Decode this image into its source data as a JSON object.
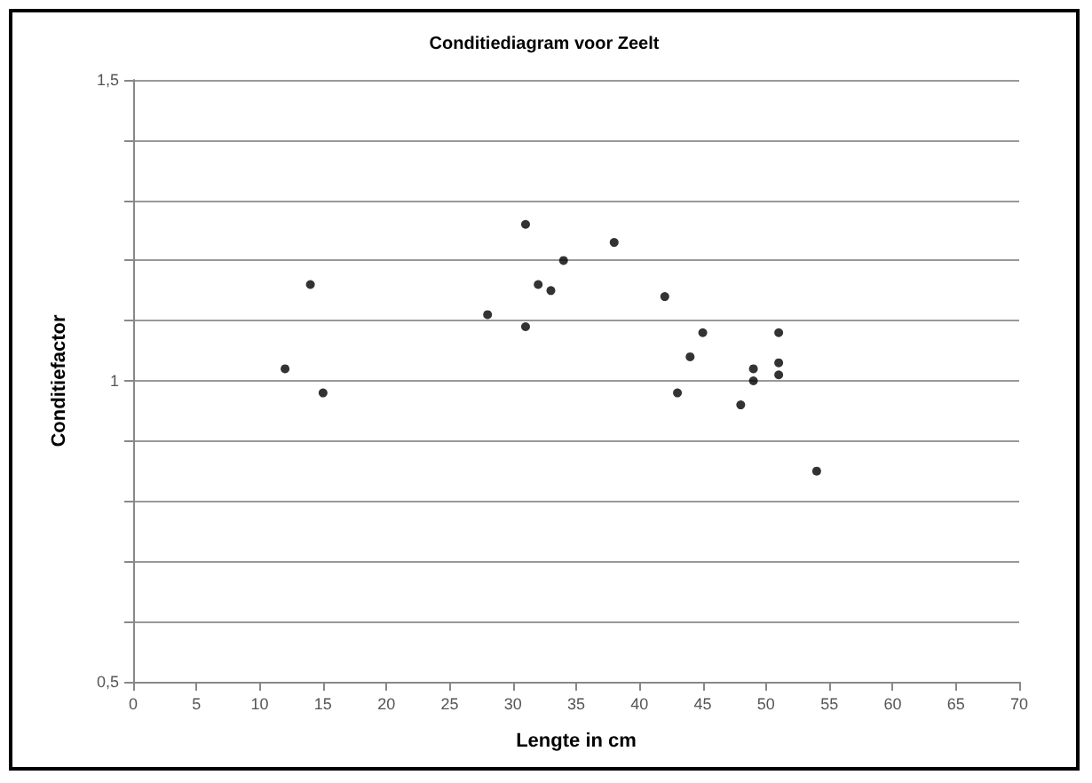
{
  "chart_data": {
    "type": "scatter",
    "title": "Conditiediagram voor Zeelt",
    "xlabel": "Lengte in cm",
    "ylabel": "Conditiefactor",
    "x": [
      12,
      14,
      15,
      28,
      31,
      31,
      32,
      33,
      34,
      38,
      42,
      45,
      44,
      43,
      48,
      49,
      49,
      51,
      51,
      51,
      54
    ],
    "series": [
      {
        "color": "#000000",
        "values": [
          1.02,
          1.16,
          0.98,
          1.11,
          1.26,
          1.09,
          1.16,
          1.15,
          1.2,
          1.23,
          1.14,
          1.08,
          1.04,
          0.98,
          0.96,
          1.02,
          1.0,
          1.08,
          1.03,
          1.01,
          0.85
        ]
      }
    ],
    "xlim": [
      0,
      70
    ],
    "xticks": [
      0,
      5,
      10,
      15,
      20,
      25,
      30,
      35,
      40,
      45,
      50,
      55,
      60,
      65,
      70
    ],
    "ylim": [
      0.5,
      1.5
    ],
    "yticks": [
      {
        "value": 0.5,
        "label": "0,5"
      },
      {
        "value": 0.6,
        "label": null
      },
      {
        "value": 0.7,
        "label": null
      },
      {
        "value": 0.8,
        "label": null
      },
      {
        "value": 0.9,
        "label": null
      },
      {
        "value": 1,
        "label": "1"
      },
      {
        "value": 1.1,
        "label": null
      },
      {
        "value": 1.2,
        "label": null
      },
      {
        "value": 1.3,
        "label": null
      },
      {
        "value": 1.4,
        "label": null
      },
      {
        "value": 1.5,
        "label": "1,5"
      }
    ],
    "grid": "y",
    "marker": "circle"
  }
}
